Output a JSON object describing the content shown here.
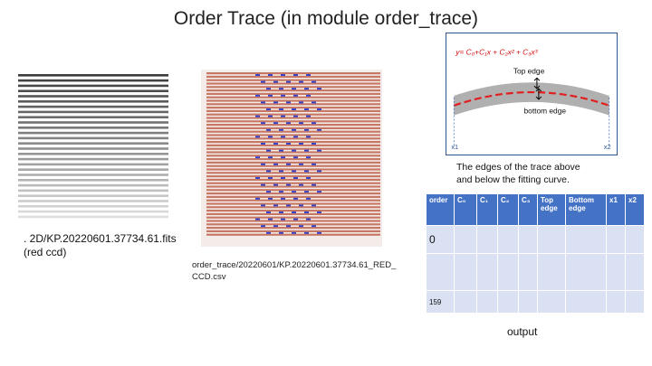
{
  "title": "Order Trace (in module order_trace)",
  "fits_caption": {
    "line1": ". 2D/KP.20220601.37734.61.fits",
    "line2": "(red ccd)"
  },
  "csv_caption": {
    "line1": "order_trace/20220601/KP.20220601.37734.61_RED_",
    "line2": "CCD.csv"
  },
  "diagram": {
    "equation": "y= C₀+C₁x + C₂x² + C₃x³",
    "top_edge_label": "Top edge",
    "bottom_edge_label": "bottom edge",
    "x1_label": "x1",
    "x2_label": "x2"
  },
  "edges_note": {
    "line1": "The edges of the trace above",
    "line2": "and below the fitting curve."
  },
  "table": {
    "headers": [
      "order",
      "C₀",
      "C₁",
      "C₂",
      "C₃",
      "Top edge",
      "Bottom edge",
      "x1",
      "x2"
    ],
    "first_order": "0",
    "last_order": "159"
  },
  "output_label": "output",
  "colors": {
    "table_header": "#4472c4",
    "table_cell": "#d9e1f2",
    "fit_curve": "#e02020",
    "trace_band": "#b0b0b0",
    "frame_border": "#2f5597"
  }
}
